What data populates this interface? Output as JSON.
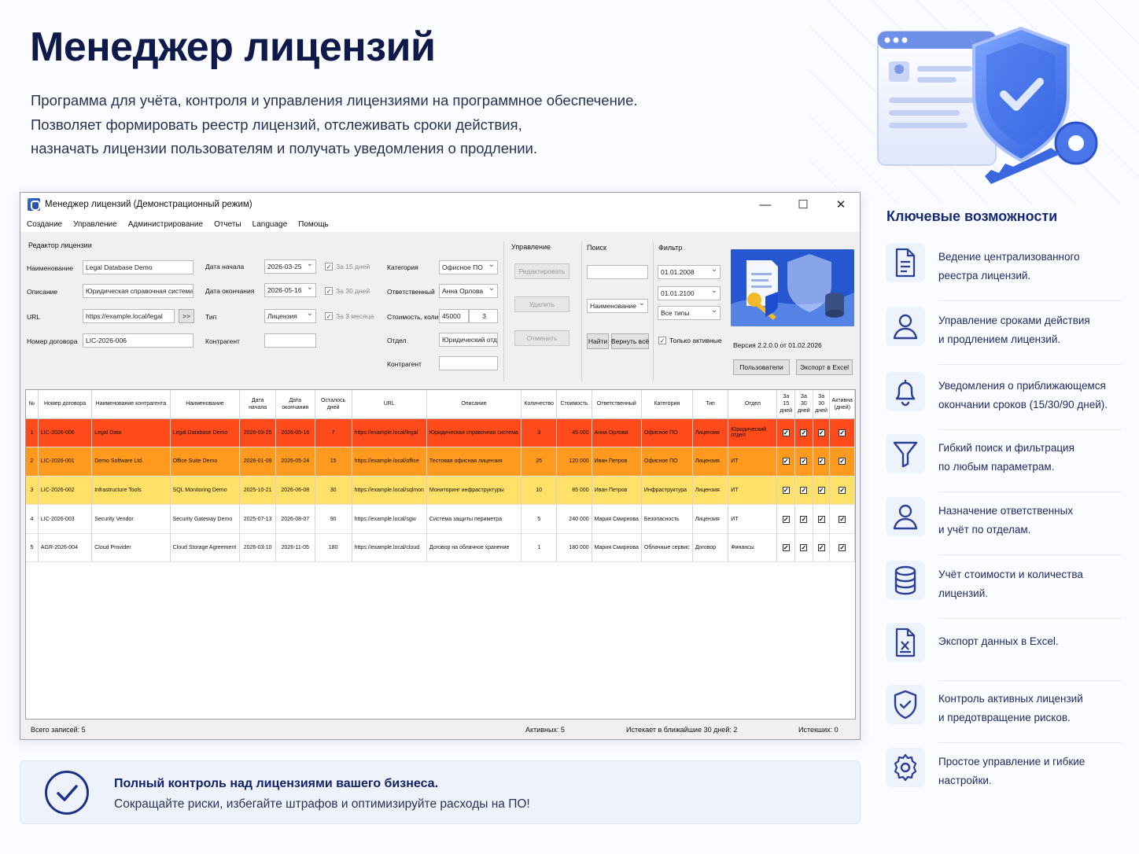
{
  "hero": {
    "title": "Менеджер лицензий",
    "desc": [
      "Программа для учёта, контроля и управления лицензиями на программное обеспечение.",
      "Позволяет формировать реестр лицензий, отслеживать сроки действия,",
      "назначать лицензии пользователям и получать уведомления о продлении."
    ]
  },
  "window": {
    "title": "Менеджер лицензий (Демонстрационный режим)",
    "menu": [
      "Создание",
      "Управление",
      "Администрирование",
      "Отчеты",
      "Language",
      "Помощь"
    ],
    "editor": {
      "group": "Редактор лицензии",
      "name_label": "Наименование",
      "name_value": "Legal Database Demo",
      "desc_label": "Описание",
      "desc_value": "Юридическая справочная система",
      "url_label": "URL",
      "url_value": "https://example.local/legal",
      "url_btn": ">>",
      "contract_label": "Номер договора",
      "contract_value": "LIC-2026-006",
      "start_label": "Дата начала",
      "start_value": "2026-03-25",
      "end_label": "Дата окончания",
      "end_value": "2026-05-16",
      "type_label": "Тип",
      "type_value": "Лицензия",
      "counterparty_label": "Контрагент",
      "counterparty_value": "",
      "chk15": "За 15 дней",
      "chk30": "За 30 дней",
      "chk90": "За 3 месяца",
      "category_label": "Категория",
      "category_value": "Офисное ПО",
      "resp_label": "Ответственный",
      "resp_value": "Анна Орлова",
      "cost_label": "Стоимость, колич.",
      "cost_value": "45000",
      "qty_value": "3",
      "dept_label": "Отдел",
      "dept_value": "Юридический отдел",
      "counterparty2_label": "Контрагент",
      "counterparty2_value": ""
    },
    "manage": {
      "group": "Управление",
      "edit": "Редактировать",
      "delete": "Удалить",
      "cancel": "Отменить"
    },
    "search": {
      "group": "Поиск",
      "value": "",
      "field": "Наименование",
      "find": "Найти",
      "reset": "Вернуть всё"
    },
    "filter": {
      "group": "Фильтр",
      "from": "01.01.2008",
      "to": "01.01.2100",
      "types": "Все типы",
      "only_active": "Только активные"
    },
    "version": "Версия 2.2.0.0 от 01.02.2026",
    "users_btn": "Пользователи",
    "export_btn": "Экспорт в Excel",
    "columns": [
      "№",
      "Номер договора",
      "Наименование контрагента",
      "Наименование",
      "Дата начала",
      "Дата окончания",
      "Осталось дней",
      "URL",
      "Описание",
      "Количество",
      "Стоимость",
      "Ответственный",
      "Категория",
      "Тип",
      "Отдел",
      "За 15 дней",
      "За 30 дней",
      "За 30 дней",
      "Активна (дней)"
    ],
    "rows": [
      {
        "n": "1",
        "contract": "LIC-2026-006",
        "counterparty": "Legal Data",
        "name": "Legal Database Demo",
        "start": "2026-03-25",
        "end": "2026-05-16",
        "left": "7",
        "url": "https://example.local/legal",
        "desc": "Юридическая справочная система",
        "qty": "3",
        "cost": "45 000",
        "resp": "Анна Орлова",
        "cat": "Офисное ПО",
        "type": "Лицензия",
        "dept": "Юридический отдел",
        "color": "#ff4a1c"
      },
      {
        "n": "2",
        "contract": "LIC-2026-001",
        "counterparty": "Demo Software Ltd.",
        "name": "Office Suite Demo",
        "start": "2026-01-09",
        "end": "2026-05-24",
        "left": "15",
        "url": "https://example.local/office",
        "desc": "Тестовая офисная лицензия",
        "qty": "25",
        "cost": "120 000",
        "resp": "Иван Петров",
        "cat": "Офисное ПО",
        "type": "Лицензия",
        "dept": "ИТ",
        "color": "#ff9a1f"
      },
      {
        "n": "3",
        "contract": "LIC-2026-002",
        "counterparty": "Infrastructure Tools",
        "name": "SQL Monitoring Demo",
        "start": "2025-10-21",
        "end": "2026-06-08",
        "left": "30",
        "url": "https://example.local/sqlmon",
        "desc": "Мониторинг инфраструктуры",
        "qty": "10",
        "cost": "85 000",
        "resp": "Иван Петров",
        "cat": "Инфраструктура",
        "type": "Лицензия",
        "dept": "ИТ",
        "color": "#ffe068"
      },
      {
        "n": "4",
        "contract": "LIC-2026-003",
        "counterparty": "Security Vendor",
        "name": "Security Gateway Demo",
        "start": "2025-07-13",
        "end": "2026-08-07",
        "left": "90",
        "url": "https://example.local/sgw",
        "desc": "Система защиты периметра",
        "qty": "5",
        "cost": "240 000",
        "resp": "Мария Смирнова",
        "cat": "Безопасность",
        "type": "Лицензия",
        "dept": "ИТ",
        "color": "#ffffff"
      },
      {
        "n": "5",
        "contract": "AGR-2026-004",
        "counterparty": "Cloud Provider",
        "name": "Cloud Storage Agreement",
        "start": "2026-03-10",
        "end": "2026-11-05",
        "left": "180",
        "url": "https://example.local/cloud",
        "desc": "Договор на облачное хранение",
        "qty": "1",
        "cost": "180 000",
        "resp": "Мария Смирнова",
        "cat": "Облачные сервис",
        "type": "Договор",
        "dept": "Финансы",
        "color": "#ffffff"
      }
    ],
    "status": {
      "total": "Всего записей: 5",
      "active": "Активных: 5",
      "expiring": "Истекает в ближайшие 30 дней: 2",
      "expired": "Истекших: 0"
    }
  },
  "callout": {
    "title": "Полный контроль над лицензиями вашего бизнеса.",
    "subtitle": "Сокращайте риски, избегайте штрафов и оптимизируйте расходы на ПО!"
  },
  "features": {
    "title": "Ключевые возможности",
    "items": [
      {
        "icon": "document-icon",
        "lines": [
          "Ведение централизованного",
          "реестра лицензий."
        ]
      },
      {
        "icon": "user-icon",
        "lines": [
          "Управление сроками действия",
          "и продлением лицензий."
        ]
      },
      {
        "icon": "bell-icon",
        "lines": [
          "Уведомления о приближающемся",
          "окончании сроков (15/30/90 дней)."
        ]
      },
      {
        "icon": "filter-icon",
        "lines": [
          "Гибкий поиск и фильтрация",
          "по любым параметрам."
        ]
      },
      {
        "icon": "user-icon",
        "lines": [
          "Назначение ответственных",
          "и учёт по отделам."
        ]
      },
      {
        "icon": "database-icon",
        "lines": [
          "Учёт стоимости и количества",
          "лицензий."
        ]
      },
      {
        "icon": "excel-icon",
        "lines": [
          "Экспорт данных в Excel."
        ]
      },
      {
        "icon": "shield-check-icon",
        "lines": [
          "Контроль активных лицензий",
          "и предотвращение рисков."
        ]
      },
      {
        "icon": "gear-icon",
        "lines": [
          "Простое управление и гибкие",
          "настройки."
        ]
      }
    ]
  },
  "colors": {
    "accent": "#162a7a",
    "row_critical": "#ff4a1c",
    "row_warning": "#ff9a1f",
    "row_notice": "#ffe068"
  }
}
